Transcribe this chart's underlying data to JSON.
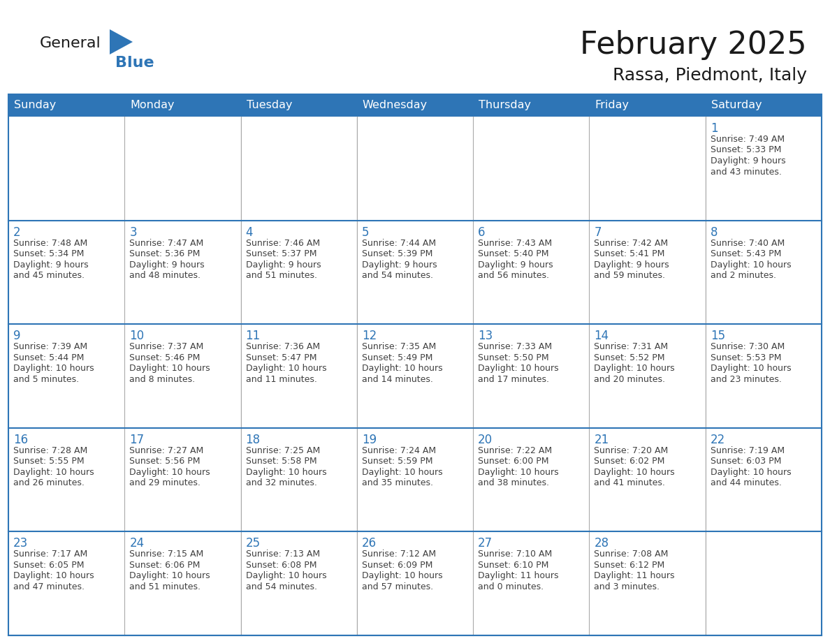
{
  "title": "February 2025",
  "subtitle": "Rassa, Piedmont, Italy",
  "days_of_week": [
    "Sunday",
    "Monday",
    "Tuesday",
    "Wednesday",
    "Thursday",
    "Friday",
    "Saturday"
  ],
  "header_bg": "#2E75B6",
  "header_text": "#FFFFFF",
  "cell_bg": "#FFFFFF",
  "grid_bg": "#F2F2F2",
  "cell_border_blue": "#2E75B6",
  "cell_border_gray": "#AAAAAA",
  "day_number_color": "#2E75B6",
  "cell_text_color": "#404040",
  "title_color": "#1a1a1a",
  "subtitle_color": "#1a1a1a",
  "logo_general_color": "#1a1a1a",
  "logo_blue_color": "#2E75B6",
  "calendar": [
    [
      null,
      null,
      null,
      null,
      null,
      null,
      {
        "day": 1,
        "sunrise": "7:49 AM",
        "sunset": "5:33 PM",
        "daylight": "9 hours",
        "daylight2": "and 43 minutes."
      }
    ],
    [
      {
        "day": 2,
        "sunrise": "7:48 AM",
        "sunset": "5:34 PM",
        "daylight": "9 hours",
        "daylight2": "and 45 minutes."
      },
      {
        "day": 3,
        "sunrise": "7:47 AM",
        "sunset": "5:36 PM",
        "daylight": "9 hours",
        "daylight2": "and 48 minutes."
      },
      {
        "day": 4,
        "sunrise": "7:46 AM",
        "sunset": "5:37 PM",
        "daylight": "9 hours",
        "daylight2": "and 51 minutes."
      },
      {
        "day": 5,
        "sunrise": "7:44 AM",
        "sunset": "5:39 PM",
        "daylight": "9 hours",
        "daylight2": "and 54 minutes."
      },
      {
        "day": 6,
        "sunrise": "7:43 AM",
        "sunset": "5:40 PM",
        "daylight": "9 hours",
        "daylight2": "and 56 minutes."
      },
      {
        "day": 7,
        "sunrise": "7:42 AM",
        "sunset": "5:41 PM",
        "daylight": "9 hours",
        "daylight2": "and 59 minutes."
      },
      {
        "day": 8,
        "sunrise": "7:40 AM",
        "sunset": "5:43 PM",
        "daylight": "10 hours",
        "daylight2": "and 2 minutes."
      }
    ],
    [
      {
        "day": 9,
        "sunrise": "7:39 AM",
        "sunset": "5:44 PM",
        "daylight": "10 hours",
        "daylight2": "and 5 minutes."
      },
      {
        "day": 10,
        "sunrise": "7:37 AM",
        "sunset": "5:46 PM",
        "daylight": "10 hours",
        "daylight2": "and 8 minutes."
      },
      {
        "day": 11,
        "sunrise": "7:36 AM",
        "sunset": "5:47 PM",
        "daylight": "10 hours",
        "daylight2": "and 11 minutes."
      },
      {
        "day": 12,
        "sunrise": "7:35 AM",
        "sunset": "5:49 PM",
        "daylight": "10 hours",
        "daylight2": "and 14 minutes."
      },
      {
        "day": 13,
        "sunrise": "7:33 AM",
        "sunset": "5:50 PM",
        "daylight": "10 hours",
        "daylight2": "and 17 minutes."
      },
      {
        "day": 14,
        "sunrise": "7:31 AM",
        "sunset": "5:52 PM",
        "daylight": "10 hours",
        "daylight2": "and 20 minutes."
      },
      {
        "day": 15,
        "sunrise": "7:30 AM",
        "sunset": "5:53 PM",
        "daylight": "10 hours",
        "daylight2": "and 23 minutes."
      }
    ],
    [
      {
        "day": 16,
        "sunrise": "7:28 AM",
        "sunset": "5:55 PM",
        "daylight": "10 hours",
        "daylight2": "and 26 minutes."
      },
      {
        "day": 17,
        "sunrise": "7:27 AM",
        "sunset": "5:56 PM",
        "daylight": "10 hours",
        "daylight2": "and 29 minutes."
      },
      {
        "day": 18,
        "sunrise": "7:25 AM",
        "sunset": "5:58 PM",
        "daylight": "10 hours",
        "daylight2": "and 32 minutes."
      },
      {
        "day": 19,
        "sunrise": "7:24 AM",
        "sunset": "5:59 PM",
        "daylight": "10 hours",
        "daylight2": "and 35 minutes."
      },
      {
        "day": 20,
        "sunrise": "7:22 AM",
        "sunset": "6:00 PM",
        "daylight": "10 hours",
        "daylight2": "and 38 minutes."
      },
      {
        "day": 21,
        "sunrise": "7:20 AM",
        "sunset": "6:02 PM",
        "daylight": "10 hours",
        "daylight2": "and 41 minutes."
      },
      {
        "day": 22,
        "sunrise": "7:19 AM",
        "sunset": "6:03 PM",
        "daylight": "10 hours",
        "daylight2": "and 44 minutes."
      }
    ],
    [
      {
        "day": 23,
        "sunrise": "7:17 AM",
        "sunset": "6:05 PM",
        "daylight": "10 hours",
        "daylight2": "and 47 minutes."
      },
      {
        "day": 24,
        "sunrise": "7:15 AM",
        "sunset": "6:06 PM",
        "daylight": "10 hours",
        "daylight2": "and 51 minutes."
      },
      {
        "day": 25,
        "sunrise": "7:13 AM",
        "sunset": "6:08 PM",
        "daylight": "10 hours",
        "daylight2": "and 54 minutes."
      },
      {
        "day": 26,
        "sunrise": "7:12 AM",
        "sunset": "6:09 PM",
        "daylight": "10 hours",
        "daylight2": "and 57 minutes."
      },
      {
        "day": 27,
        "sunrise": "7:10 AM",
        "sunset": "6:10 PM",
        "daylight": "11 hours",
        "daylight2": "and 0 minutes."
      },
      {
        "day": 28,
        "sunrise": "7:08 AM",
        "sunset": "6:12 PM",
        "daylight": "11 hours",
        "daylight2": "and 3 minutes."
      },
      null
    ]
  ]
}
